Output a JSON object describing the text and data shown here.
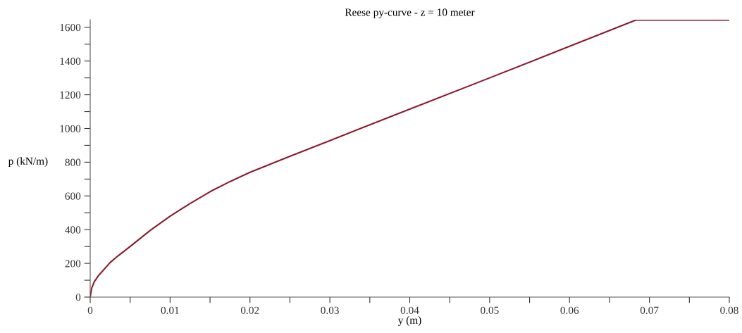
{
  "chart_data": {
    "type": "line",
    "title": "Reese py-curve - z = 10 meter",
    "xlabel": "y (m)",
    "ylabel": "p (kN/m)",
    "x": [
      0,
      0.0002,
      0.0005,
      0.001,
      0.0025,
      0.0035,
      0.005,
      0.0075,
      0.01,
      0.0125,
      0.015,
      0.0175,
      0.02,
      0.025,
      0.03,
      0.04,
      0.05,
      0.06,
      0.0683,
      0.08
    ],
    "series": [
      {
        "color": "#8b1a2b",
        "values": [
          0,
          55,
          90,
          125,
          205,
          245,
          300,
          395,
          480,
          555,
          625,
          685,
          740,
          835,
          928,
          1115,
          1300,
          1487,
          1643,
          1643
        ]
      }
    ],
    "xlim": [
      0,
      0.08
    ],
    "ylim": [
      0,
      1645
    ],
    "xticks": [
      0,
      {
        "value": 0.005,
        "label": null
      },
      0.01,
      {
        "value": 0.015,
        "label": null
      },
      0.02,
      {
        "value": 0.025,
        "label": null
      },
      0.03,
      {
        "value": 0.035,
        "label": null
      },
      0.04,
      {
        "value": 0.045,
        "label": null
      },
      0.05,
      {
        "value": 0.055,
        "label": null
      },
      0.06,
      {
        "value": 0.065,
        "label": null
      },
      0.07,
      {
        "value": 0.075,
        "label": null
      },
      0.08
    ],
    "yticks": [
      0,
      {
        "value": 100,
        "label": null
      },
      200,
      {
        "value": 300,
        "label": null
      },
      400,
      {
        "value": 500,
        "label": null
      },
      600,
      {
        "value": 700,
        "label": null
      },
      800,
      {
        "value": 900,
        "label": null
      },
      1000,
      {
        "value": 1100,
        "label": null
      },
      1200,
      {
        "value": 1300,
        "label": null
      },
      1400,
      {
        "value": 1500,
        "label": null
      },
      1600
    ],
    "grid": false,
    "legend": false,
    "marker": "none",
    "line_style": "solid"
  }
}
